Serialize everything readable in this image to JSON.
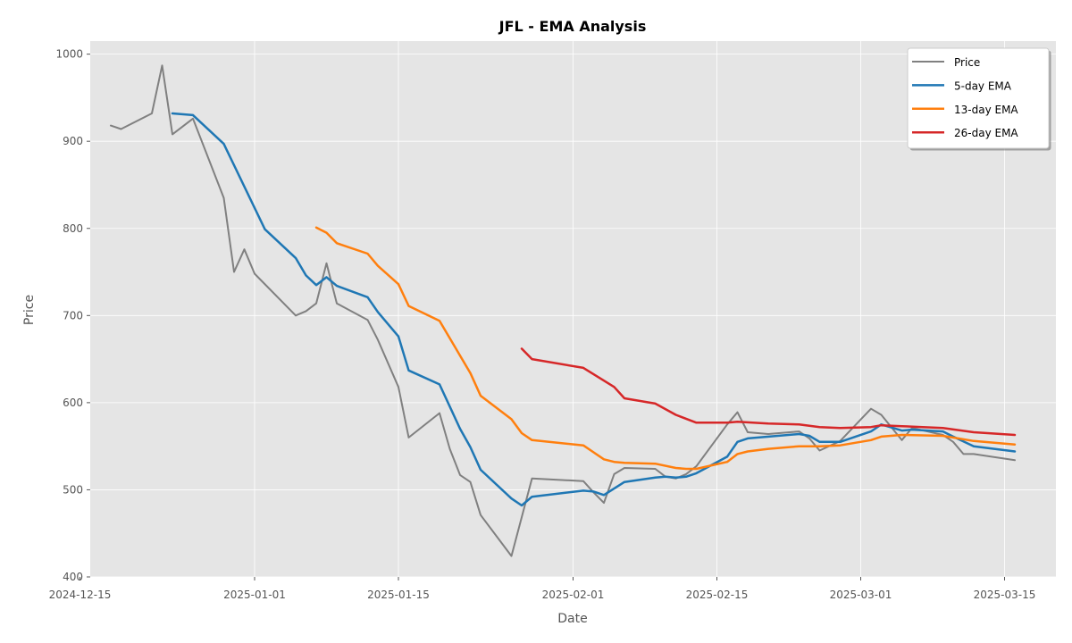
{
  "chart_data": {
    "type": "line",
    "title": "JFL - EMA Analysis",
    "xlabel": "Date",
    "ylabel": "Price",
    "x_axis_type": "date",
    "xlim": [
      "2024-12-16",
      "2025-03-20"
    ],
    "ylim": [
      400,
      1015
    ],
    "x_ticks": [
      "2024-12-15",
      "2025-01-01",
      "2025-01-15",
      "2025-02-01",
      "2025-02-15",
      "2025-03-01",
      "2025-03-15"
    ],
    "y_ticks": [
      400,
      500,
      600,
      700,
      800,
      900,
      1000
    ],
    "grid": true,
    "legend": "top-right",
    "series": [
      {
        "name": "Price",
        "color": "#808080",
        "points": [
          [
            "2024-12-18",
            918
          ],
          [
            "2024-12-19",
            914
          ],
          [
            "2024-12-22",
            932
          ],
          [
            "2024-12-23",
            987
          ],
          [
            "2024-12-24",
            908
          ],
          [
            "2024-12-26",
            926
          ],
          [
            "2024-12-29",
            835
          ],
          [
            "2024-12-30",
            750
          ],
          [
            "2024-12-31",
            776
          ],
          [
            "2025-01-01",
            748
          ],
          [
            "2025-01-05",
            700
          ],
          [
            "2025-01-06",
            705
          ],
          [
            "2025-01-07",
            714
          ],
          [
            "2025-01-08",
            760
          ],
          [
            "2025-01-09",
            714
          ],
          [
            "2025-01-12",
            695
          ],
          [
            "2025-01-13",
            672
          ],
          [
            "2025-01-15",
            618
          ],
          [
            "2025-01-16",
            560
          ],
          [
            "2025-01-19",
            588
          ],
          [
            "2025-01-20",
            547
          ],
          [
            "2025-01-21",
            517
          ],
          [
            "2025-01-22",
            509
          ],
          [
            "2025-01-23",
            471
          ],
          [
            "2025-01-26",
            424
          ],
          [
            "2025-01-28",
            513
          ],
          [
            "2025-02-02",
            510
          ],
          [
            "2025-02-03",
            497
          ],
          [
            "2025-02-04",
            485
          ],
          [
            "2025-02-05",
            518
          ],
          [
            "2025-02-06",
            525
          ],
          [
            "2025-02-09",
            524
          ],
          [
            "2025-02-10",
            515
          ],
          [
            "2025-02-11",
            513
          ],
          [
            "2025-02-12",
            518
          ],
          [
            "2025-02-13",
            527
          ],
          [
            "2025-02-16",
            575
          ],
          [
            "2025-02-17",
            589
          ],
          [
            "2025-02-18",
            566
          ],
          [
            "2025-02-20",
            564
          ],
          [
            "2025-02-23",
            567
          ],
          [
            "2025-02-24",
            559
          ],
          [
            "2025-02-25",
            545
          ],
          [
            "2025-02-27",
            556
          ],
          [
            "2025-03-02",
            593
          ],
          [
            "2025-03-03",
            586
          ],
          [
            "2025-03-05",
            557
          ],
          [
            "2025-03-06",
            571
          ],
          [
            "2025-03-09",
            563
          ],
          [
            "2025-03-10",
            555
          ],
          [
            "2025-03-11",
            541
          ],
          [
            "2025-03-12",
            541
          ],
          [
            "2025-03-16",
            534
          ]
        ]
      },
      {
        "name": "5-day EMA",
        "color": "#1f77b4",
        "points": [
          [
            "2024-12-24",
            932
          ],
          [
            "2024-12-26",
            930
          ],
          [
            "2024-12-29",
            897
          ],
          [
            "2025-01-02",
            799
          ],
          [
            "2025-01-05",
            766
          ],
          [
            "2025-01-06",
            746
          ],
          [
            "2025-01-07",
            735
          ],
          [
            "2025-01-08",
            744
          ],
          [
            "2025-01-09",
            734
          ],
          [
            "2025-01-12",
            721
          ],
          [
            "2025-01-13",
            704
          ],
          [
            "2025-01-15",
            676
          ],
          [
            "2025-01-16",
            637
          ],
          [
            "2025-01-19",
            621
          ],
          [
            "2025-01-21",
            570
          ],
          [
            "2025-01-22",
            549
          ],
          [
            "2025-01-23",
            523
          ],
          [
            "2025-01-26",
            490
          ],
          [
            "2025-01-27",
            482
          ],
          [
            "2025-01-28",
            492
          ],
          [
            "2025-02-02",
            499
          ],
          [
            "2025-02-03",
            498
          ],
          [
            "2025-02-04",
            494
          ],
          [
            "2025-02-06",
            509
          ],
          [
            "2025-02-09",
            514
          ],
          [
            "2025-02-10",
            515
          ],
          [
            "2025-02-11",
            514
          ],
          [
            "2025-02-12",
            515
          ],
          [
            "2025-02-13",
            519
          ],
          [
            "2025-02-16",
            538
          ],
          [
            "2025-02-17",
            555
          ],
          [
            "2025-02-18",
            559
          ],
          [
            "2025-02-23",
            564
          ],
          [
            "2025-02-24",
            562
          ],
          [
            "2025-02-25",
            555
          ],
          [
            "2025-02-27",
            555
          ],
          [
            "2025-03-02",
            567
          ],
          [
            "2025-03-03",
            575
          ],
          [
            "2025-03-05",
            568
          ],
          [
            "2025-03-06",
            569
          ],
          [
            "2025-03-09",
            567
          ],
          [
            "2025-03-10",
            561
          ],
          [
            "2025-03-12",
            550
          ],
          [
            "2025-03-16",
            544
          ]
        ]
      },
      {
        "name": "13-day EMA",
        "color": "#ff7f0e",
        "points": [
          [
            "2025-01-07",
            801
          ],
          [
            "2025-01-08",
            795
          ],
          [
            "2025-01-09",
            783
          ],
          [
            "2025-01-12",
            771
          ],
          [
            "2025-01-13",
            757
          ],
          [
            "2025-01-15",
            736
          ],
          [
            "2025-01-16",
            711
          ],
          [
            "2025-01-19",
            694
          ],
          [
            "2025-01-21",
            654
          ],
          [
            "2025-01-22",
            634
          ],
          [
            "2025-01-23",
            608
          ],
          [
            "2025-01-26",
            581
          ],
          [
            "2025-01-27",
            565
          ],
          [
            "2025-01-28",
            557
          ],
          [
            "2025-02-02",
            551
          ],
          [
            "2025-02-03",
            543
          ],
          [
            "2025-02-04",
            535
          ],
          [
            "2025-02-05",
            532
          ],
          [
            "2025-02-06",
            531
          ],
          [
            "2025-02-09",
            530
          ],
          [
            "2025-02-11",
            525
          ],
          [
            "2025-02-12",
            524
          ],
          [
            "2025-02-13",
            524
          ],
          [
            "2025-02-16",
            532
          ],
          [
            "2025-02-17",
            541
          ],
          [
            "2025-02-18",
            544
          ],
          [
            "2025-02-20",
            547
          ],
          [
            "2025-02-23",
            550
          ],
          [
            "2025-02-25",
            550
          ],
          [
            "2025-02-27",
            551
          ],
          [
            "2025-03-02",
            557
          ],
          [
            "2025-03-03",
            561
          ],
          [
            "2025-03-05",
            563
          ],
          [
            "2025-03-09",
            562
          ],
          [
            "2025-03-12",
            556
          ],
          [
            "2025-03-16",
            552
          ]
        ]
      },
      {
        "name": "26-day EMA",
        "color": "#d62728",
        "points": [
          [
            "2025-01-27",
            662
          ],
          [
            "2025-01-28",
            650
          ],
          [
            "2025-02-02",
            640
          ],
          [
            "2025-02-05",
            618
          ],
          [
            "2025-02-06",
            605
          ],
          [
            "2025-02-09",
            599
          ],
          [
            "2025-02-11",
            586
          ],
          [
            "2025-02-13",
            577
          ],
          [
            "2025-02-16",
            577
          ],
          [
            "2025-02-17",
            578
          ],
          [
            "2025-02-20",
            576
          ],
          [
            "2025-02-23",
            575
          ],
          [
            "2025-02-25",
            572
          ],
          [
            "2025-02-27",
            571
          ],
          [
            "2025-03-02",
            572
          ],
          [
            "2025-03-03",
            574
          ],
          [
            "2025-03-05",
            573
          ],
          [
            "2025-03-09",
            571
          ],
          [
            "2025-03-12",
            566
          ],
          [
            "2025-03-16",
            563
          ]
        ]
      }
    ]
  }
}
